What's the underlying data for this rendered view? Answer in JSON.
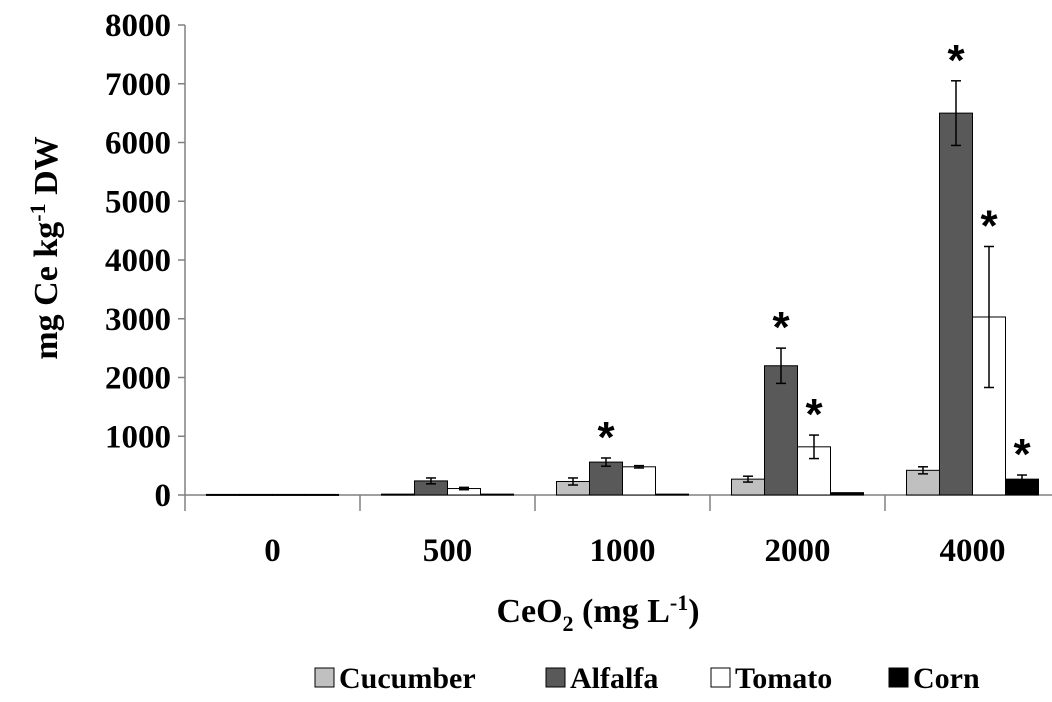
{
  "chart_data": {
    "type": "bar",
    "xlabel": {
      "base": "CeO",
      "sub": "2",
      "suffix": " (mg L",
      "sup": "-1",
      "end": ")"
    },
    "ylabel": {
      "pre": "mg Ce kg",
      "sup": "-1",
      "post": " DW"
    },
    "ylim": [
      0,
      8000
    ],
    "yticks": [
      0,
      1000,
      2000,
      3000,
      4000,
      5000,
      6000,
      7000,
      8000
    ],
    "categories": [
      "0",
      "500",
      "1000",
      "2000",
      "4000"
    ],
    "series": [
      {
        "name": "Cucumber",
        "color": "#c0c0c0",
        "values": [
          10,
          15,
          230,
          270,
          420
        ],
        "errors": [
          0,
          0,
          60,
          50,
          60
        ],
        "significant": [
          false,
          false,
          false,
          false,
          false
        ]
      },
      {
        "name": "Alfalfa",
        "color": "#595959",
        "values": [
          10,
          240,
          560,
          2200,
          6500
        ],
        "errors": [
          0,
          50,
          70,
          300,
          550
        ],
        "significant": [
          false,
          false,
          true,
          true,
          true
        ]
      },
      {
        "name": "Tomato",
        "color": "#ffffff",
        "values": [
          10,
          110,
          480,
          820,
          3030
        ],
        "errors": [
          0,
          20,
          20,
          200,
          1200
        ],
        "significant": [
          false,
          false,
          false,
          true,
          true
        ]
      },
      {
        "name": "Corn",
        "color": "#000000",
        "values": [
          10,
          15,
          15,
          40,
          270
        ],
        "errors": [
          0,
          0,
          0,
          0,
          70
        ],
        "significant": [
          false,
          false,
          false,
          false,
          true
        ]
      }
    ],
    "significance_marker": "*",
    "legend_position": "bottom",
    "grid": false
  }
}
